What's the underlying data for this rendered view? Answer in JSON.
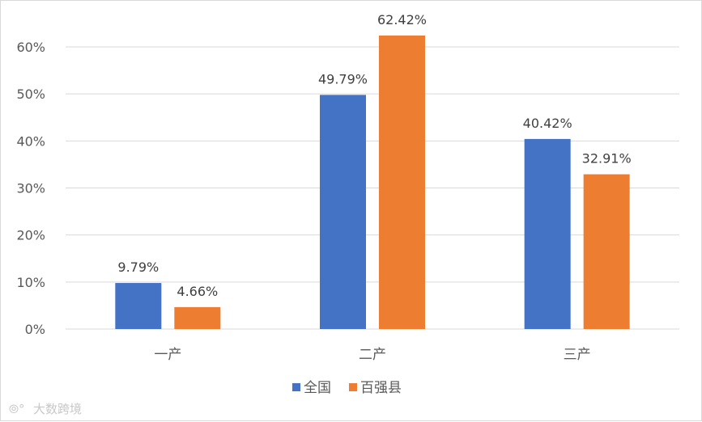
{
  "chart_data": {
    "type": "bar",
    "categories": [
      "一产",
      "二产",
      "三产"
    ],
    "series": [
      {
        "name": "全国",
        "values": [
          9.79,
          49.79,
          40.42
        ],
        "labels": [
          "9.79%",
          "49.79%",
          "40.42%"
        ],
        "color": "#4472c4"
      },
      {
        "name": "百强县",
        "values": [
          4.66,
          62.42,
          32.91
        ],
        "labels": [
          "4.66%",
          "62.42%",
          "32.91%"
        ],
        "color": "#ed7d31"
      }
    ],
    "ylim": [
      0,
      60
    ],
    "yticks": [
      0,
      10,
      20,
      30,
      40,
      50,
      60
    ],
    "ytick_labels": [
      "0%",
      "10%",
      "20%",
      "30%",
      "40%",
      "50%",
      "60%"
    ],
    "grid": true,
    "legend_position": "bottom"
  },
  "watermark": "大数跨境",
  "colors": {
    "grid": "#d9d9d9",
    "axis_text": "#595959"
  }
}
